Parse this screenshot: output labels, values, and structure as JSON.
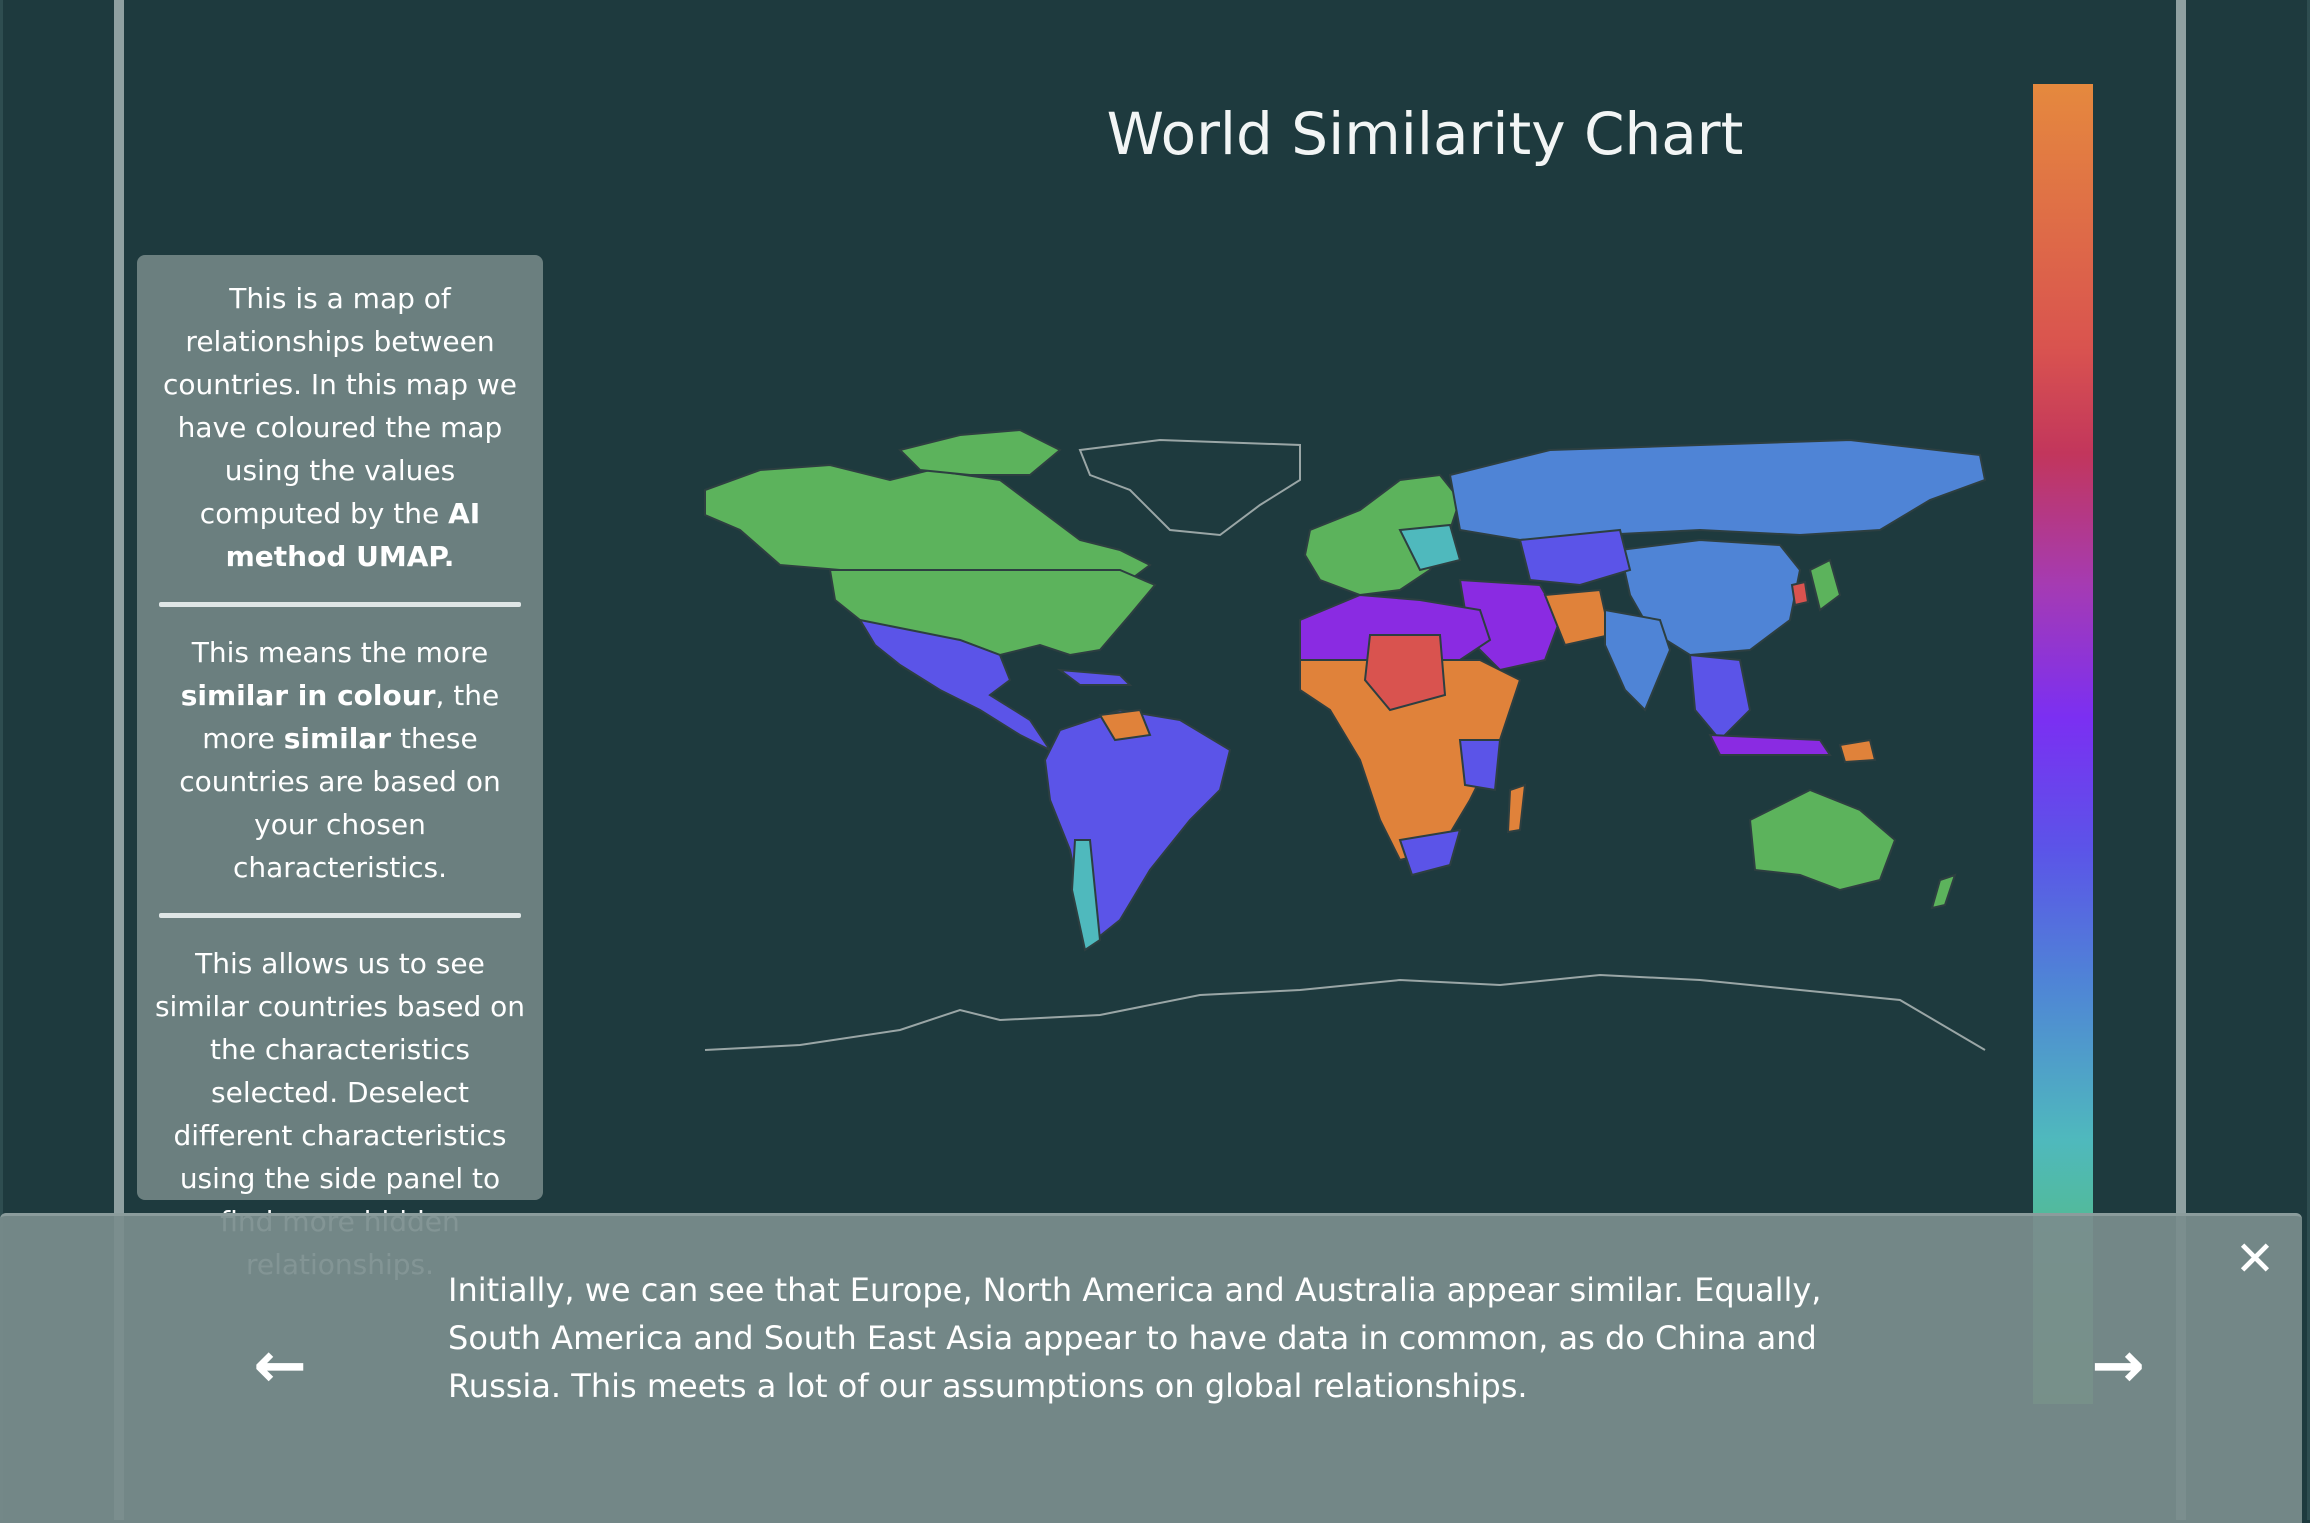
{
  "title": "World Similarity Chart",
  "info_panel": {
    "block1_pre": "This is a map of relationships between countries. In this map we have coloured the map using the values computed by the ",
    "block1_bold": "AI method UMAP.",
    "block2_pre": "This means the more ",
    "block2_bold1": "similar in colour",
    "block2_mid": ", the more ",
    "block2_bold2": "similar",
    "block2_post": " these countries are based on your chosen characteristics.",
    "block3": "This allows us to see similar countries based on the characteristics selected. Deselect different characteristics using the side panel to find more hidden relationships."
  },
  "narrative": {
    "text": "Initially, we can see that Europe, North America and Australia appear similar. Equally, South America and South East Asia appear to have data in common, as do China and Russia. This meets a lot of our assumptions on global relationships."
  },
  "icons": {
    "prev": "arrow-left-icon",
    "next": "arrow-right-icon",
    "close": "close-icon"
  },
  "colors": {
    "background": "#1e3a3e",
    "panel": "#6b7f7f",
    "green": "#5cb35c",
    "blue": "#4f84d6",
    "violet": "#5b54e8",
    "purple": "#8a2be2",
    "orange": "#e0823a",
    "red": "#d9534f",
    "teal": "#4fb9bd"
  }
}
